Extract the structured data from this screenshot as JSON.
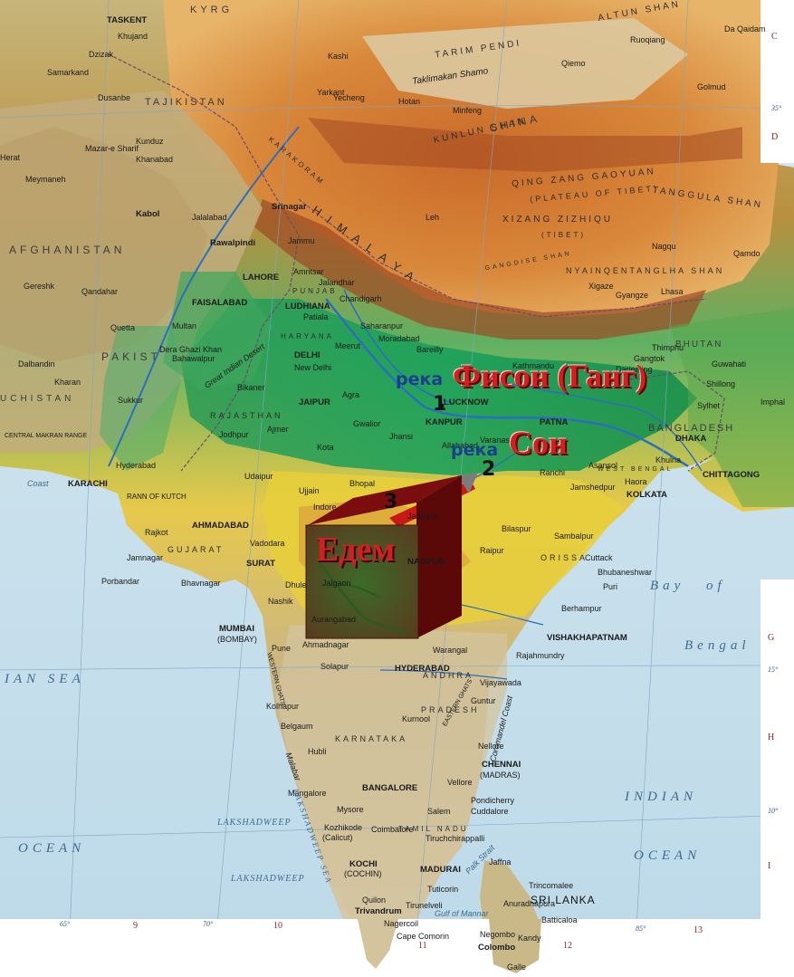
{
  "labels": {
    "china": "CHINA",
    "afghanistan": "AFGHANISTAN",
    "pakistan": "PAKIST",
    "baluchistan": "UCHISTAN",
    "bangladesh": "BANGLADESH",
    "bhutan": "BHUTAN",
    "tajikistan": "TAJIKISTAN",
    "kyrgyz": "KYRG",
    "tibet_plateau": "QING ZANG GAOYUAN",
    "tibet_plateau_sub": "(PLATEAU OF TIBET)",
    "xizang": "XIZANG ZIZHIQU",
    "xizang_sub": "(TIBET)",
    "tanggula": "TANGGULA SHAN",
    "kunlun": "KUNLUN SHAN",
    "altun": "ALTUN SHAN",
    "tarim": "TARIM PENDI",
    "taklimakan": "Taklimakan Shamo",
    "himalaya": "HIMALAYA",
    "nyainqen": "NYAINQENTANGLHA SHAN",
    "gangdise": "GANGDISE SHAN",
    "karakoram": "KARAKORAM",
    "rajasthan": "RAJASTHAN",
    "gujarat": "GUJARAT",
    "orissa": "ORISSA",
    "andhra": "ANDHRA",
    "pradesh": "PRADESH",
    "karnataka": "KARNATAKA",
    "tamil_nadu": "TAMIL NADU",
    "haryana": "HARYANA",
    "punjab": "PUNJAB",
    "west_bengal": "WEST BENGAL",
    "great_indian_desert": "Great Indian Desert",
    "rann_of_kutch": "RANN OF KUTCH",
    "central_makran": "CENTRAL MAKRAN RANGE",
    "coast": "Coast",
    "coromandel": "Coromandel Coast",
    "malabar": "Malabar",
    "western_ghats": "WESTERN GHATS",
    "eastern_ghats": "EASTERN GHATS",
    "arabian_sea": "IAN SEA",
    "bay_of_bengal_1": "Bay",
    "bay_of_bengal_2": "of",
    "bay_of_bengal_3": "Bengal",
    "ocean_left": "OCEAN",
    "indian": "INDIAN",
    "ocean_right": "OCEAN",
    "lakshadweep_1": "LAKSHADWEEP",
    "lakshadweep_2": "LAKSHADWEEP",
    "lakshadweep_sea": "LAKSHADWEEP SEA",
    "sri_lanka": "SRI LANKA",
    "gulf_mannar": "Gulf of Mannar",
    "palk": "Palk Strait"
  },
  "cities": [
    "TASKENT",
    "Dzizak",
    "Samarkand",
    "Dusanbe",
    "Khujand",
    "Kashi",
    "Yarkant",
    "Hotan",
    "Yecheng",
    "Minfeng",
    "Qiemo",
    "Ruoqiang",
    "Da Qaidam",
    "Mazar-e Sharif",
    "Kunduz",
    "Khanabad",
    "Meymaneh",
    "Kabol",
    "Jalalabad",
    "Herat",
    "Qandahar",
    "Gereshk",
    "Quetta",
    "Dera Ghazi Khan",
    "Dalbandin",
    "Kharan",
    "Rawalpindi",
    "Srinagar",
    "Jammu",
    "LAHORE",
    "FAISALABAD",
    "Amritsar",
    "Jalandhar",
    "LUDHIANA",
    "Chandigarh",
    "Patiala",
    "Multan",
    "Bahawalpur",
    "Sukkur",
    "Hyderabad",
    "KARACHI",
    "Leh",
    "Lhasa",
    "Gyangze",
    "Xigaze",
    "Nagqu",
    "Qamdo",
    "Golmud",
    "DELHI",
    "New Delhi",
    "Meerut",
    "Moradabad",
    "Bareilly",
    "Agra",
    "Gwalior",
    "Jhansi",
    "JAIPUR",
    "Bikaner",
    "Jodhpur",
    "Ajmer",
    "Kota",
    "Udaipur",
    "Ujjain",
    "Bhopal",
    "Indore",
    "Saharanpur",
    "LUCKNOW",
    "KANPUR",
    "Allahabad",
    "Varanasi",
    "PATNA",
    "Gaya",
    "Ranchi",
    "Jamshedpur",
    "Asansol",
    "Haora",
    "KOLKATA",
    "DHAKA",
    "Khulna",
    "CHITTAGONG",
    "Sylhet",
    "Guwahati",
    "Shillong",
    "Imphal",
    "Kathmandu",
    "Thimphu",
    "Gangtok",
    "Darjeeling",
    "AHMADABAD",
    "Vadodara",
    "SURAT",
    "Rajkot",
    "Jamnagar",
    "Porbandar",
    "Bhavnagar",
    "Nashik",
    "Dhule",
    "Jalgaon",
    "Aurangabad",
    "Pune",
    "MUMBAI",
    "(BOMBAY)",
    "Ahmadnagar",
    "Solapur",
    "Kolhapur",
    "Belgaum",
    "Hubli",
    "NAGPUR",
    "Jabalpur",
    "Raipur",
    "Bilaspur",
    "Sambalpur",
    "Cuttack",
    "Bhubaneshwar",
    "Puri",
    "Berhampur",
    "VISHAKHAPATNAM",
    "Rajahmundry",
    "Vijayawada",
    "Guntur",
    "HYDERABAD",
    "Warangal",
    "Kurnool",
    "Nellore",
    "CHENNAI",
    "(MADRAS)",
    "Vellore",
    "Pondicherry",
    "Cuddalore",
    "BANGALORE",
    "Mysore",
    "Mangalore",
    "Kozhikode",
    "(Calicut)",
    "Coimbatore",
    "Salem",
    "Tiruchchirappalli",
    "MADURAI",
    "KOCHI",
    "(COCHIN)",
    "Quilon",
    "Trivandrum",
    "Tirunelveli",
    "Tuticorin",
    "Nagercoil",
    "Cape Comorin",
    "Jaffna",
    "Trincomalee",
    "Anuradhapura",
    "Kandy",
    "Colombo",
    "Galle",
    "Negombo",
    "Batticaloa"
  ],
  "grid": {
    "rows": [
      "C",
      "D",
      "G",
      "H",
      "I"
    ],
    "cols": [
      "9",
      "10",
      "11",
      "12",
      "13"
    ],
    "lat": [
      "35°",
      "15°",
      "10°"
    ],
    "lon": [
      "65°",
      "70°",
      "85°"
    ]
  },
  "annotations": {
    "reka_1": "река",
    "fison": "Фисон (Ганг)",
    "num_1": "1",
    "reka_2": "река",
    "son": "Сон",
    "num_2": "2",
    "num_3": "3",
    "eden": "Едем"
  },
  "colors": {
    "sea": "#c9e1ec",
    "lowland": "#1f9c4f",
    "plain": "#7cc36e",
    "plateau_yellow": "#e3c935",
    "hills": "#e89a3a",
    "mountains": "#b3521f",
    "peaks": "#8a3a1e",
    "annotation_red": "#d22020",
    "annotation_blue": "#1c3f8c"
  }
}
